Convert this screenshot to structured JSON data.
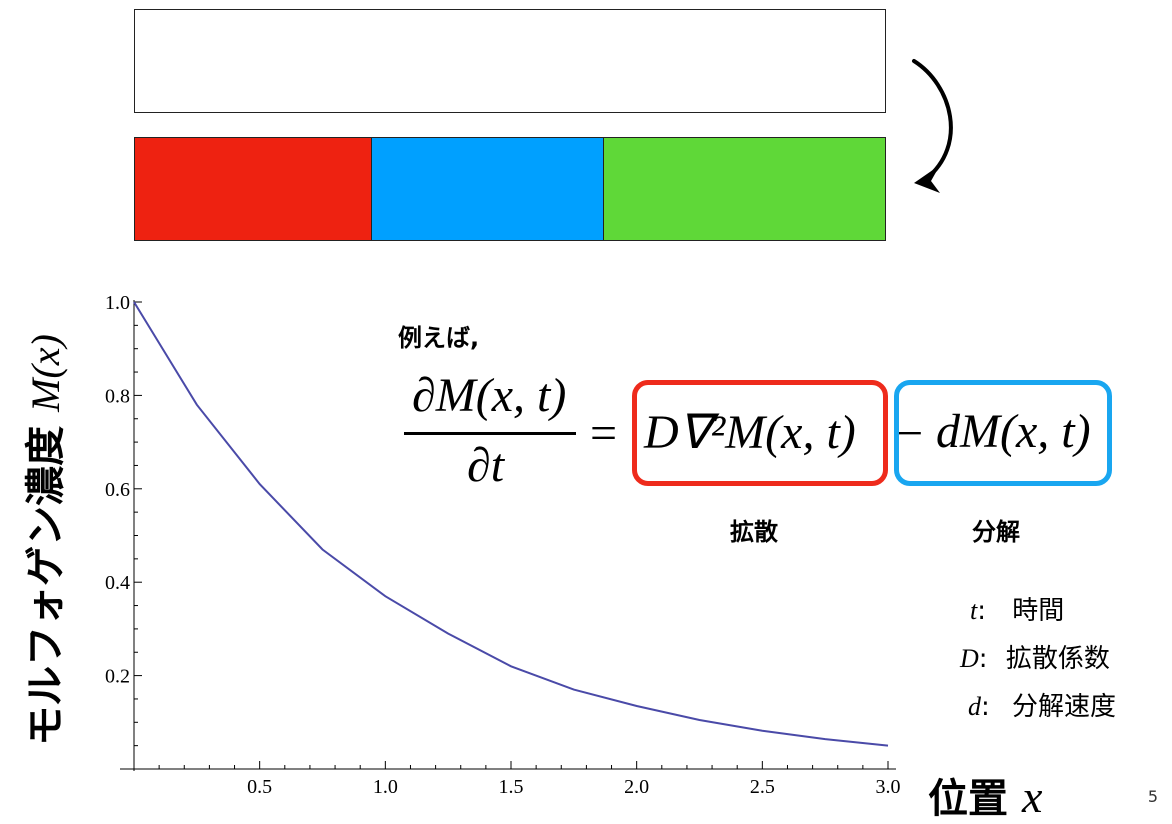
{
  "strips": {
    "top": {
      "color": "#ffffff"
    },
    "bottom": {
      "segments": [
        {
          "color": "#ee2211"
        },
        {
          "color": "#00a0ff"
        },
        {
          "color": "#5fd838"
        }
      ]
    }
  },
  "arrow_icon": "curved-arrow-icon",
  "equation": {
    "intro": "例えば,",
    "lhs_num": "∂M(x, t)",
    "lhs_den": "∂t",
    "equals": "=",
    "diffusion_term": "D∇²M(x, t)",
    "minus": "−",
    "decay_term": "dM(x, t)",
    "diffusion_label": "拡散",
    "decay_label": "分解",
    "diffusion_color": "#ee2b1c",
    "decay_color": "#19a6f0"
  },
  "legend": [
    {
      "symbol": "t",
      "colon": ":",
      "meaning": "時間"
    },
    {
      "symbol": "D",
      "colon": ":",
      "meaning": "拡散係数"
    },
    {
      "symbol": "d",
      "colon": ":",
      "meaning": "分解速度"
    }
  ],
  "axis_labels": {
    "y_text": "モルフォゲン濃度",
    "y_var": "M(x)",
    "x_text": "位置",
    "x_var": "x"
  },
  "page_number": "5",
  "chart_data": {
    "type": "line",
    "xlabel": "位置 x",
    "ylabel": "モルフォゲン濃度 M(x)",
    "xlim": [
      0,
      3.0
    ],
    "ylim": [
      0,
      1.0
    ],
    "x_ticks": [
      "0.5",
      "1.0",
      "1.5",
      "2.0",
      "2.5",
      "3.0"
    ],
    "y_ticks": [
      "0.2",
      "0.4",
      "0.6",
      "0.8",
      "1.0"
    ],
    "line_color": "#4a4aa8",
    "series": [
      {
        "x": [
          0,
          0.25,
          0.5,
          0.75,
          1.0,
          1.25,
          1.5,
          1.75,
          2.0,
          2.25,
          2.5,
          2.75,
          3.0
        ],
        "y": [
          1.0,
          0.78,
          0.61,
          0.47,
          0.37,
          0.29,
          0.22,
          0.17,
          0.135,
          0.105,
          0.082,
          0.064,
          0.05
        ]
      }
    ]
  }
}
